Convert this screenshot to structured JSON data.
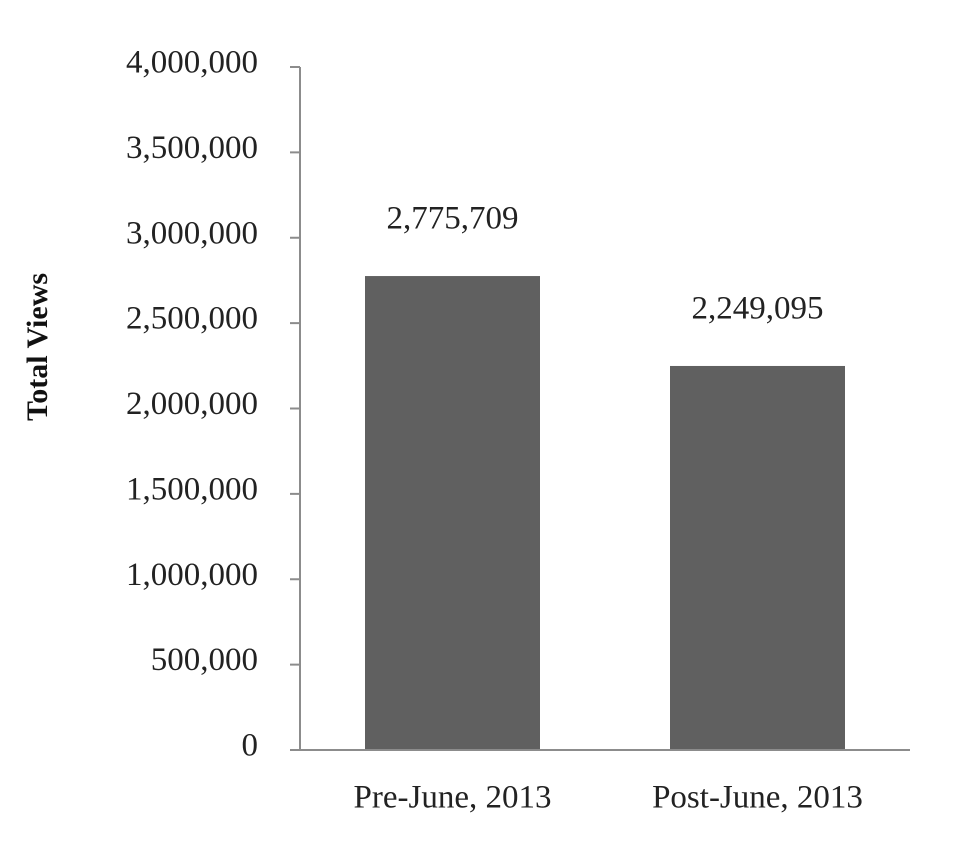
{
  "chart_data": {
    "type": "bar",
    "title": "",
    "xlabel": "",
    "ylabel": "Total Views",
    "categories": [
      "Pre-June, 2013",
      "Post-June, 2013"
    ],
    "values": [
      2775709,
      2249095
    ],
    "value_labels": [
      "2,775,709",
      "2,249,095"
    ],
    "ylim": [
      0,
      4000000
    ],
    "yticks": [
      0,
      500000,
      1000000,
      1500000,
      2000000,
      2500000,
      3000000,
      3500000,
      4000000
    ],
    "ytick_labels": [
      "0",
      "500,000",
      "1,000,000",
      "1,500,000",
      "2,000,000",
      "2,500,000",
      "3,000,000",
      "3,500,000",
      "4,000,000"
    ],
    "grid": false,
    "legend": "none",
    "colors": {
      "bar": "#606060",
      "axis": "#8c8c8c",
      "text": "#222222"
    }
  }
}
